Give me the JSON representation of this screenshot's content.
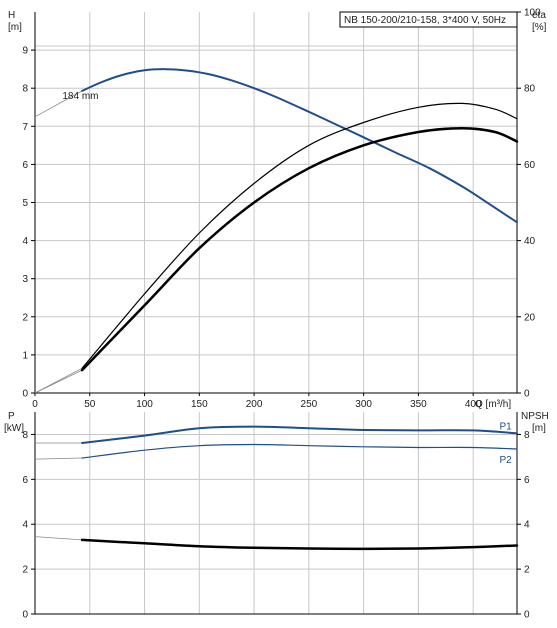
{
  "colors": {
    "blue": "#1f4e8c",
    "black": "#000000",
    "grid": "#c8c8c8",
    "axis": "#000000"
  },
  "chart_data": [
    {
      "type": "line",
      "title": "NB 150-200/210-158, 3*400 V, 50Hz",
      "xlabel": "Q [m³/h]",
      "x_ticks": [
        0,
        50,
        100,
        150,
        200,
        250,
        300,
        350,
        400
      ],
      "xlim": [
        0,
        440
      ],
      "left_axis": {
        "label_line1": "H",
        "label_line2": "[m]",
        "ylim": [
          0,
          10
        ],
        "ticks": [
          0,
          1,
          2,
          3,
          4,
          5,
          6,
          7,
          8,
          9
        ]
      },
      "right_axis": {
        "label_line1": "eta",
        "label_line2": "[%]",
        "ylim": [
          0,
          100
        ],
        "ticks": [
          0,
          20,
          40,
          60,
          80,
          100
        ]
      },
      "grid": true,
      "series": [
        {
          "name": "184 mm",
          "axis": "left",
          "color": "#1f4e8c",
          "width": 2,
          "x": [
            43,
            60,
            80,
            100,
            120,
            140,
            160,
            180,
            200,
            220,
            250,
            280,
            300,
            330,
            360,
            390,
            410,
            440
          ],
          "y": [
            7.93,
            8.15,
            8.35,
            8.47,
            8.5,
            8.46,
            8.36,
            8.2,
            8.0,
            7.77,
            7.38,
            6.98,
            6.71,
            6.3,
            5.9,
            5.42,
            5.05,
            4.48
          ],
          "ext_x": [
            0,
            43
          ],
          "ext_y": [
            7.25,
            7.93
          ]
        },
        {
          "name": "",
          "axis": "right",
          "color": "#000000",
          "width": 1.2,
          "x": [
            43,
            100,
            150,
            200,
            250,
            300,
            350,
            390,
            420,
            440
          ],
          "y": [
            6.5,
            26,
            42,
            55,
            65,
            71,
            75,
            76,
            74.5,
            72
          ],
          "ext_x": [
            0,
            43
          ],
          "ext_y": [
            0,
            6.5
          ]
        },
        {
          "name": "",
          "axis": "right",
          "color": "#000000",
          "width": 2.5,
          "x": [
            43,
            100,
            150,
            200,
            250,
            300,
            350,
            390,
            420,
            440
          ],
          "y": [
            6,
            23,
            38,
            50,
            59,
            65,
            68.5,
            69.5,
            68.5,
            66
          ],
          "ext_x": [
            0,
            43
          ],
          "ext_y": [
            0,
            6
          ]
        }
      ],
      "annotations": [
        {
          "text": "184 mm",
          "x": 25,
          "y": 7.82
        }
      ]
    },
    {
      "type": "line",
      "xlim": [
        0,
        440
      ],
      "left_axis": {
        "label_line1": "P",
        "label_line2": "[kW]",
        "ylim": [
          0,
          9
        ],
        "ticks": [
          0,
          2,
          4,
          6,
          8
        ]
      },
      "right_axis": {
        "label_line1": "NPSH",
        "label_line2": "[m]",
        "ylim": [
          0,
          9
        ],
        "ticks": [
          0,
          2,
          4,
          6,
          8
        ]
      },
      "grid": true,
      "series": [
        {
          "name": "P1",
          "axis": "left",
          "color": "#1f4e8c",
          "width": 2,
          "x": [
            43,
            100,
            150,
            200,
            250,
            300,
            350,
            400,
            440
          ],
          "y": [
            7.62,
            7.95,
            8.28,
            8.35,
            8.28,
            8.2,
            8.18,
            8.18,
            8.05
          ],
          "ext_x": [
            0,
            43
          ],
          "ext_y": [
            7.62,
            7.62
          ]
        },
        {
          "name": "P2",
          "axis": "left",
          "color": "#1f4e8c",
          "width": 1.2,
          "x": [
            43,
            100,
            150,
            200,
            250,
            300,
            350,
            400,
            440
          ],
          "y": [
            6.95,
            7.3,
            7.5,
            7.55,
            7.5,
            7.45,
            7.42,
            7.42,
            7.35
          ],
          "ext_x": [
            0,
            43
          ],
          "ext_y": [
            6.9,
            6.95
          ]
        },
        {
          "name": "",
          "axis": "right",
          "color": "#000000",
          "width": 2.5,
          "x": [
            43,
            100,
            150,
            200,
            250,
            300,
            350,
            400,
            440
          ],
          "y": [
            3.3,
            3.15,
            3.02,
            2.95,
            2.92,
            2.9,
            2.92,
            2.98,
            3.05
          ],
          "ext_x": [
            0,
            43
          ],
          "ext_y": [
            3.45,
            3.3
          ]
        }
      ],
      "curve_labels": [
        "P1",
        "P2"
      ]
    }
  ]
}
